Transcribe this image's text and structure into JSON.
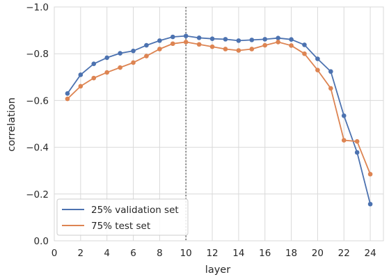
{
  "chart_data": {
    "type": "line",
    "xlabel": "layer",
    "ylabel": "correlation",
    "xlim": [
      0,
      25
    ],
    "ylim": [
      0,
      -1
    ],
    "y_axis_inverted": true,
    "x_ticks": [
      0,
      2,
      4,
      6,
      8,
      10,
      12,
      14,
      16,
      18,
      20,
      22,
      24
    ],
    "y_ticks": [
      0.0,
      -0.2,
      -0.4,
      -0.6,
      -0.8,
      -1.0
    ],
    "x_tick_labels": [
      "0",
      "2",
      "4",
      "6",
      "8",
      "10",
      "12",
      "14",
      "16",
      "18",
      "20",
      "22",
      "24"
    ],
    "y_tick_labels": [
      "0.0",
      "−0.2",
      "−0.4",
      "−0.6",
      "−0.8",
      "−1.0"
    ],
    "grid": true,
    "legend_position": "lower-left",
    "vline": {
      "x": 10,
      "style": "dotted",
      "color": "#808080"
    },
    "x": [
      1,
      2,
      3,
      4,
      5,
      6,
      7,
      8,
      9,
      10,
      11,
      12,
      13,
      14,
      15,
      16,
      17,
      18,
      19,
      20,
      21,
      22,
      23,
      24
    ],
    "series": [
      {
        "name": "25% validation set",
        "color": "#4c72b0",
        "values": [
          -0.63,
          -0.71,
          -0.757,
          -0.783,
          -0.802,
          -0.812,
          -0.836,
          -0.856,
          -0.872,
          -0.876,
          -0.868,
          -0.864,
          -0.862,
          -0.856,
          -0.859,
          -0.862,
          -0.867,
          -0.861,
          -0.838,
          -0.778,
          -0.724,
          -0.535,
          -0.378,
          -0.157
        ]
      },
      {
        "name": "75% test set",
        "color": "#dd8452",
        "values": [
          -0.607,
          -0.661,
          -0.696,
          -0.72,
          -0.741,
          -0.762,
          -0.79,
          -0.82,
          -0.843,
          -0.85,
          -0.84,
          -0.83,
          -0.82,
          -0.814,
          -0.82,
          -0.836,
          -0.85,
          -0.835,
          -0.8,
          -0.73,
          -0.652,
          -0.43,
          -0.425,
          -0.285
        ]
      }
    ]
  }
}
